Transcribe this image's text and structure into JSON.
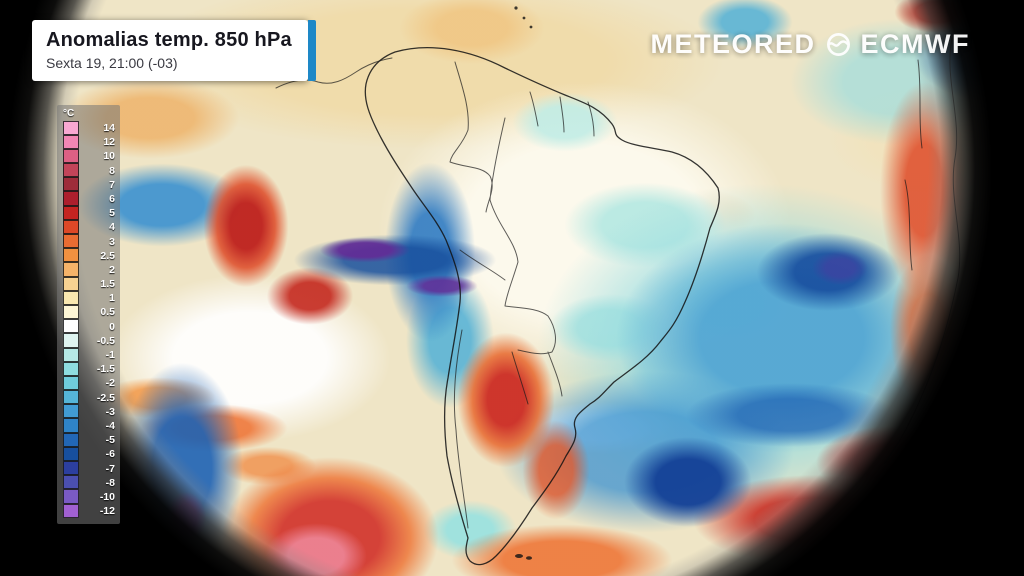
{
  "header": {
    "title": "Anomalias temp. 850 hPa",
    "subtitle": "Sexta 19, 21:00 (-03)",
    "accent_color": "#1e88c7"
  },
  "brand": {
    "left": "METEORED",
    "right": "ECMWF",
    "separator_icon": "ecmwf-globe-icon"
  },
  "legend": {
    "unit": "°C",
    "entries": [
      {
        "label": "14",
        "color": "#f9a8d2"
      },
      {
        "label": "12",
        "color": "#f286b4"
      },
      {
        "label": "10",
        "color": "#dd6084"
      },
      {
        "label": "8",
        "color": "#c24459"
      },
      {
        "label": "7",
        "color": "#9e2c3a"
      },
      {
        "label": "6",
        "color": "#ad1f2d"
      },
      {
        "label": "5",
        "color": "#c52421"
      },
      {
        "label": "4",
        "color": "#dd4827"
      },
      {
        "label": "3",
        "color": "#ea6c32"
      },
      {
        "label": "2.5",
        "color": "#f19140"
      },
      {
        "label": "2",
        "color": "#f5b369"
      },
      {
        "label": "1.5",
        "color": "#f8d291"
      },
      {
        "label": "1",
        "color": "#f9e8b0"
      },
      {
        "label": "0.5",
        "color": "#fdf6d5"
      },
      {
        "label": "0",
        "color": "#ffffff"
      },
      {
        "label": "-0.5",
        "color": "#dff4f0"
      },
      {
        "label": "-1",
        "color": "#b5e9e5"
      },
      {
        "label": "-1.5",
        "color": "#8edde0"
      },
      {
        "label": "-2",
        "color": "#6fccdb"
      },
      {
        "label": "-2.5",
        "color": "#55b5d8"
      },
      {
        "label": "-3",
        "color": "#419cd4"
      },
      {
        "label": "-4",
        "color": "#2f84c8"
      },
      {
        "label": "-5",
        "color": "#2267b6"
      },
      {
        "label": "-6",
        "color": "#174f9d"
      },
      {
        "label": "-7",
        "color": "#2c3f9f"
      },
      {
        "label": "-8",
        "color": "#4b4fb0"
      },
      {
        "label": "-10",
        "color": "#7a5ac4"
      },
      {
        "label": "-12",
        "color": "#a160d2"
      }
    ]
  }
}
